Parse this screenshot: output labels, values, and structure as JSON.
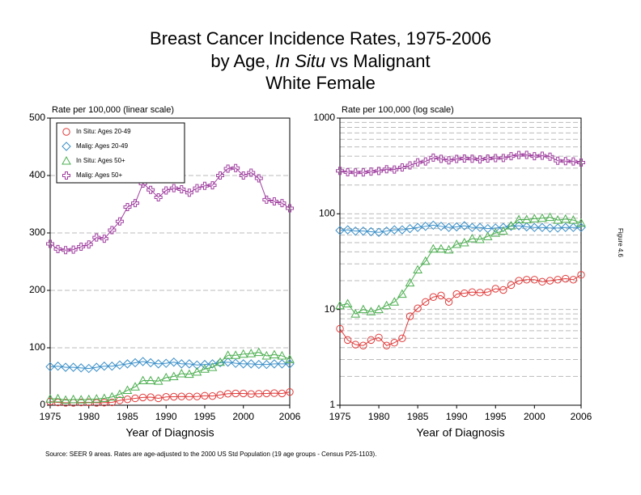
{
  "title_lines": [
    "Breast Cancer Incidence Rates, 1975-2006",
    [
      "by Age,",
      "In Situ",
      "vs Malignant"
    ],
    "White Female"
  ],
  "figure_label": "Figure 4.6",
  "source": "Source: SEER 9 areas.  Rates are age-adjusted to the 2000 US Std Population (19 age groups - Census P25-1103).",
  "chart_data": [
    {
      "type": "line",
      "y_label": "Rate per 100,000 (linear scale)",
      "x_label": "Year of Diagnosis",
      "scale": "linear",
      "grid": true,
      "minor_grid": false,
      "legend": "upper left",
      "xlim": [
        1975,
        2006
      ],
      "xticks": [
        1975,
        1980,
        1985,
        1990,
        1995,
        2000,
        2006
      ],
      "ylim": [
        0,
        500
      ],
      "yticks": [
        0,
        100,
        200,
        300,
        400,
        500
      ],
      "x": [
        1975,
        1976,
        1977,
        1978,
        1979,
        1980,
        1981,
        1982,
        1983,
        1984,
        1985,
        1986,
        1987,
        1988,
        1989,
        1990,
        1991,
        1992,
        1993,
        1994,
        1995,
        1996,
        1997,
        1998,
        1999,
        2000,
        2001,
        2002,
        2003,
        2004,
        2005,
        2006
      ],
      "series": [
        {
          "name": "In Situ: Ages 20-49",
          "color": "#e03a3a",
          "marker": "circle",
          "values": [
            6.3,
            4.8,
            4.3,
            4.2,
            4.8,
            5.1,
            4.2,
            4.5,
            5.0,
            8.5,
            10.3,
            12,
            13.5,
            14,
            12,
            14.5,
            14.8,
            15.2,
            15,
            15.2,
            16.5,
            16,
            18,
            20,
            20.5,
            20.5,
            19.5,
            20,
            20.5,
            21,
            20.5,
            23
          ]
        },
        {
          "name": "Malig: Ages 20-49",
          "color": "#3a8fc8",
          "marker": "diamond",
          "values": [
            67,
            68,
            66,
            66,
            65,
            64,
            66,
            68,
            68,
            70,
            72,
            74,
            76,
            74,
            72,
            73,
            75,
            72,
            72,
            70,
            71,
            72,
            74,
            75,
            73,
            72,
            72,
            71,
            71,
            72,
            72,
            72
          ]
        },
        {
          "name": "In Situ: Ages 50+",
          "color": "#4caf50",
          "marker": "triangle",
          "values": [
            11,
            11.5,
            9,
            10,
            9.5,
            10,
            11,
            12,
            14.5,
            19,
            26,
            32,
            43,
            43,
            42,
            48,
            50,
            55,
            54,
            58,
            63,
            66,
            75,
            87,
            87,
            89,
            90,
            92,
            86,
            88,
            86,
            80
          ]
        },
        {
          "name": "Malig: Ages 50+",
          "color": "#a040a0",
          "marker": "plus",
          "values": [
            281,
            272,
            270,
            271,
            276,
            280,
            292,
            290,
            305,
            320,
            345,
            352,
            386,
            375,
            362,
            374,
            378,
            376,
            370,
            378,
            382,
            383,
            400,
            412,
            413,
            400,
            405,
            395,
            358,
            355,
            352,
            343
          ]
        }
      ]
    },
    {
      "type": "line",
      "y_label": "Rate per 100,000 (log scale)",
      "x_label": "Year of Diagnosis",
      "scale": "log",
      "grid": true,
      "minor_grid": true,
      "xlim": [
        1975,
        2006
      ],
      "xticks": [
        1975,
        1980,
        1985,
        1990,
        1995,
        2000,
        2006
      ],
      "ylim": [
        1,
        1000
      ],
      "yticks": [
        1,
        10,
        100,
        1000
      ],
      "x": [
        1975,
        1976,
        1977,
        1978,
        1979,
        1980,
        1981,
        1982,
        1983,
        1984,
        1985,
        1986,
        1987,
        1988,
        1989,
        1990,
        1991,
        1992,
        1993,
        1994,
        1995,
        1996,
        1997,
        1998,
        1999,
        2000,
        2001,
        2002,
        2003,
        2004,
        2005,
        2006
      ],
      "series": [
        {
          "color": "#e03a3a",
          "marker": "circle",
          "values": [
            6.3,
            4.8,
            4.3,
            4.2,
            4.8,
            5.1,
            4.2,
            4.5,
            5.0,
            8.5,
            10.3,
            12,
            13.5,
            14,
            12,
            14.5,
            14.8,
            15.2,
            15,
            15.2,
            16.5,
            16,
            18,
            20,
            20.5,
            20.5,
            19.5,
            20,
            20.5,
            21,
            20.5,
            23
          ]
        },
        {
          "color": "#3a8fc8",
          "marker": "diamond",
          "values": [
            67,
            68,
            66,
            66,
            65,
            64,
            66,
            68,
            68,
            70,
            72,
            74,
            76,
            74,
            72,
            73,
            75,
            72,
            72,
            70,
            71,
            72,
            74,
            75,
            73,
            72,
            72,
            71,
            71,
            72,
            72,
            72
          ]
        },
        {
          "color": "#4caf50",
          "marker": "triangle",
          "values": [
            11,
            11.5,
            9,
            10,
            9.5,
            10,
            11,
            12,
            14.5,
            19,
            26,
            32,
            43,
            43,
            42,
            48,
            50,
            55,
            54,
            58,
            63,
            66,
            75,
            87,
            87,
            89,
            90,
            92,
            86,
            88,
            86,
            80
          ]
        },
        {
          "color": "#a040a0",
          "marker": "plus",
          "values": [
            281,
            272,
            270,
            271,
            276,
            280,
            292,
            290,
            305,
            320,
            345,
            352,
            386,
            375,
            362,
            374,
            378,
            376,
            370,
            378,
            382,
            383,
            400,
            412,
            413,
            400,
            405,
            395,
            358,
            355,
            352,
            343
          ]
        }
      ]
    }
  ]
}
